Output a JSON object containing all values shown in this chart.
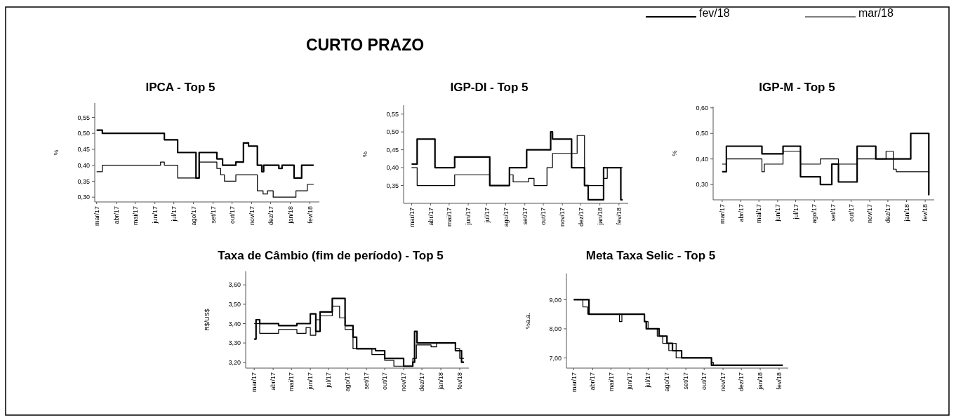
{
  "chart_data": [
    {
      "type": "other",
      "title": "CURTO PRAZO"
    },
    {
      "type": "step",
      "title": "IPCA - Top 5",
      "ylabel": "%",
      "xlim": [
        "2017-02-26",
        "2018-02-16"
      ],
      "ylim": [
        0.285,
        0.595
      ],
      "xticks": [
        {
          "value": "2017-03-01",
          "label": "mar/17"
        },
        {
          "value": "2017-04-01",
          "label": "abr/17"
        },
        {
          "value": "2017-05-01",
          "label": "mai/17"
        },
        {
          "value": "2017-06-01",
          "label": "jun/17"
        },
        {
          "value": "2017-07-01",
          "label": "jul/17"
        },
        {
          "value": "2017-08-01",
          "label": "ago/17"
        },
        {
          "value": "2017-09-01",
          "label": "set/17"
        },
        {
          "value": "2017-10-01",
          "label": "out/17"
        },
        {
          "value": "2017-11-01",
          "label": "nov/17"
        },
        {
          "value": "2017-12-01",
          "label": "dez/17"
        },
        {
          "value": "2018-01-01",
          "label": "jan/18"
        },
        {
          "value": "2018-02-01",
          "label": "fev/18"
        }
      ],
      "yticks": [
        {
          "value": 0.3,
          "label": "0,30"
        },
        {
          "value": 0.35,
          "label": "0,35"
        },
        {
          "value": 0.4,
          "label": "0,40"
        },
        {
          "value": 0.45,
          "label": "0,45"
        },
        {
          "value": 0.5,
          "label": "0,50"
        },
        {
          "value": 0.55,
          "label": "0,55"
        }
      ],
      "series": [
        {
          "color": "#000000",
          "x": [
            "2017-03-01",
            "2017-03-10",
            "2017-06-16",
            "2017-07-07",
            "2017-08-05",
            "2017-08-10",
            "2017-09-07",
            "2017-09-16",
            "2017-10-07",
            "2017-10-19",
            "2017-10-27",
            "2017-11-10",
            "2017-11-17",
            "2017-11-20",
            "2017-12-14",
            "2017-12-19",
            "2018-01-07",
            "2018-01-19",
            "2018-02-07"
          ],
          "values": [
            0.51,
            0.5,
            0.48,
            0.44,
            0.36,
            0.44,
            0.42,
            0.4,
            0.41,
            0.47,
            0.46,
            0.4,
            0.38,
            0.4,
            0.39,
            0.4,
            0.36,
            0.4,
            0.4
          ]
        },
        {
          "color": "#000000",
          "x": [
            "2017-03-01",
            "2017-03-10",
            "2017-06-10",
            "2017-06-16",
            "2017-07-07",
            "2017-08-10",
            "2017-09-07",
            "2017-09-13",
            "2017-09-19",
            "2017-10-07",
            "2017-11-10",
            "2017-11-19",
            "2017-11-26",
            "2017-12-05",
            "2018-01-10",
            "2018-01-28",
            "2018-02-07"
          ],
          "values": [
            0.38,
            0.4,
            0.41,
            0.4,
            0.36,
            0.41,
            0.39,
            0.37,
            0.35,
            0.37,
            0.32,
            0.31,
            0.32,
            0.3,
            0.32,
            0.34,
            0.34
          ]
        }
      ]
    },
    {
      "type": "step",
      "title": "IGP-DI - Top 5",
      "ylabel": "%",
      "xlim": [
        "2017-02-16",
        "2018-02-16"
      ],
      "ylim": [
        0.3,
        0.575
      ],
      "xticks": [
        {
          "value": "2017-03-01",
          "label": "mar/17"
        },
        {
          "value": "2017-04-01",
          "label": "abr/17"
        },
        {
          "value": "2017-05-01",
          "label": "mai/17"
        },
        {
          "value": "2017-06-01",
          "label": "jun/17"
        },
        {
          "value": "2017-07-01",
          "label": "jul/17"
        },
        {
          "value": "2017-08-01",
          "label": "ago/17"
        },
        {
          "value": "2017-09-01",
          "label": "set/17"
        },
        {
          "value": "2017-10-01",
          "label": "out/17"
        },
        {
          "value": "2017-11-01",
          "label": "nov/17"
        },
        {
          "value": "2017-12-01",
          "label": "dez/17"
        },
        {
          "value": "2018-01-01",
          "label": "jan/18"
        },
        {
          "value": "2018-02-01",
          "label": "fev/18"
        }
      ],
      "yticks": [
        {
          "value": 0.35,
          "label": "0,35"
        },
        {
          "value": 0.4,
          "label": "0,40"
        },
        {
          "value": 0.45,
          "label": "0,45"
        },
        {
          "value": 0.5,
          "label": "0,50"
        },
        {
          "value": 0.55,
          "label": "0,55"
        }
      ],
      "series": [
        {
          "color": "#000000",
          "x": [
            "2017-03-01",
            "2017-03-10",
            "2017-04-08",
            "2017-05-10",
            "2017-07-06",
            "2017-08-07",
            "2017-09-04",
            "2017-10-13",
            "2017-10-16",
            "2017-11-16",
            "2017-12-07",
            "2017-12-13",
            "2018-01-07",
            "2018-02-04",
            "2018-02-07"
          ],
          "values": [
            0.41,
            0.48,
            0.4,
            0.43,
            0.35,
            0.4,
            0.45,
            0.5,
            0.48,
            0.4,
            0.35,
            0.31,
            0.4,
            0.31,
            0.31
          ]
        },
        {
          "color": "#000000",
          "x": [
            "2017-03-01",
            "2017-03-10",
            "2017-05-10",
            "2017-07-06",
            "2017-08-07",
            "2017-08-13",
            "2017-09-07",
            "2017-09-16",
            "2017-10-07",
            "2017-10-16",
            "2017-11-25",
            "2017-12-07",
            "2018-01-07",
            "2018-01-13",
            "2018-02-07"
          ],
          "values": [
            0.4,
            0.35,
            0.38,
            0.35,
            0.38,
            0.36,
            0.37,
            0.35,
            0.4,
            0.44,
            0.49,
            0.35,
            0.37,
            0.4,
            0.4
          ]
        }
      ]
    },
    {
      "type": "step",
      "title": "IGP-M - Top 5",
      "ylabel": "%",
      "legend": "top left",
      "xlim": [
        "2017-02-14",
        "2018-02-16"
      ],
      "ylim": [
        0.24,
        0.605
      ],
      "xticks": [
        {
          "value": "2017-03-01",
          "label": "mar/17"
        },
        {
          "value": "2017-04-01",
          "label": "abr/17"
        },
        {
          "value": "2017-05-01",
          "label": "mai/17"
        },
        {
          "value": "2017-06-01",
          "label": "jun/17"
        },
        {
          "value": "2017-07-01",
          "label": "jul/17"
        },
        {
          "value": "2017-08-01",
          "label": "ago/17"
        },
        {
          "value": "2017-09-01",
          "label": "set/17"
        },
        {
          "value": "2017-10-01",
          "label": "out/17"
        },
        {
          "value": "2017-11-01",
          "label": "nov/17"
        },
        {
          "value": "2017-12-01",
          "label": "dez/17"
        },
        {
          "value": "2018-01-01",
          "label": "jan/18"
        },
        {
          "value": "2018-02-01",
          "label": "fev/18"
        }
      ],
      "yticks": [
        {
          "value": 0.3,
          "label": "0,30"
        },
        {
          "value": 0.4,
          "label": "0,40"
        },
        {
          "value": 0.5,
          "label": "0,50"
        },
        {
          "value": 0.6,
          "label": "0,60"
        }
      ],
      "series": [
        {
          "name": "fev/18",
          "color": "#000000",
          "x": [
            "2017-03-01",
            "2017-03-08",
            "2017-05-06",
            "2017-06-10",
            "2017-07-09",
            "2017-08-11",
            "2017-08-30",
            "2017-09-10",
            "2017-10-11",
            "2017-11-11",
            "2018-01-08",
            "2018-02-07",
            "2018-02-08"
          ],
          "values": [
            0.35,
            0.45,
            0.42,
            0.45,
            0.33,
            0.3,
            0.38,
            0.31,
            0.45,
            0.4,
            0.5,
            0.26,
            0.26
          ]
        },
        {
          "name": "mar/18",
          "color": "#000000",
          "x": [
            "2017-03-01",
            "2017-03-08",
            "2017-05-06",
            "2017-05-10",
            "2017-06-10",
            "2017-07-09",
            "2017-08-11",
            "2017-09-10",
            "2017-10-11",
            "2017-11-28",
            "2017-12-10",
            "2017-12-15",
            "2018-02-08"
          ],
          "values": [
            0.38,
            0.4,
            0.35,
            0.38,
            0.43,
            0.38,
            0.4,
            0.38,
            0.4,
            0.43,
            0.36,
            0.35,
            0.35
          ]
        }
      ]
    },
    {
      "type": "step",
      "title": "Taxa de Câmbio (fim de período) - Top 5",
      "ylabel": "R$/US$",
      "xlim": [
        "2017-02-15",
        "2018-02-16"
      ],
      "ylim": [
        3.17,
        3.67
      ],
      "xticks": [
        {
          "value": "2017-03-01",
          "label": "mar/17"
        },
        {
          "value": "2017-04-01",
          "label": "abr/17"
        },
        {
          "value": "2017-05-01",
          "label": "mai/17"
        },
        {
          "value": "2017-06-01",
          "label": "jun/17"
        },
        {
          "value": "2017-07-01",
          "label": "jul/17"
        },
        {
          "value": "2017-08-01",
          "label": "ago/17"
        },
        {
          "value": "2017-09-01",
          "label": "set/17"
        },
        {
          "value": "2017-10-01",
          "label": "out/17"
        },
        {
          "value": "2017-11-01",
          "label": "nov/17"
        },
        {
          "value": "2017-12-01",
          "label": "dez/17"
        },
        {
          "value": "2018-01-01",
          "label": "jan/18"
        },
        {
          "value": "2018-02-01",
          "label": "fev/18"
        }
      ],
      "yticks": [
        {
          "value": 3.2,
          "label": "3,20"
        },
        {
          "value": 3.3,
          "label": "3,30"
        },
        {
          "value": 3.4,
          "label": "3,40"
        },
        {
          "value": 3.5,
          "label": "3,50"
        },
        {
          "value": 3.6,
          "label": "3,60"
        }
      ],
      "series": [
        {
          "color": "#000000",
          "x": [
            "2017-03-01",
            "2017-03-04",
            "2017-03-10",
            "2017-04-10",
            "2017-05-10",
            "2017-06-01",
            "2017-06-10",
            "2017-06-17",
            "2017-07-07",
            "2017-07-28",
            "2017-08-10",
            "2017-08-16",
            "2017-09-16",
            "2017-10-01",
            "2017-11-01",
            "2017-11-16",
            "2017-11-19",
            "2017-11-23",
            "2018-01-25",
            "2018-02-04",
            "2018-02-08"
          ],
          "values": [
            3.32,
            3.42,
            3.4,
            3.39,
            3.4,
            3.45,
            3.36,
            3.46,
            3.53,
            3.39,
            3.33,
            3.27,
            3.26,
            3.22,
            3.18,
            3.2,
            3.36,
            3.3,
            3.26,
            3.2,
            3.2
          ]
        },
        {
          "color": "#000000",
          "x": [
            "2017-03-01",
            "2017-03-10",
            "2017-04-10",
            "2017-05-10",
            "2017-05-25",
            "2017-06-01",
            "2017-06-10",
            "2017-06-17",
            "2017-07-07",
            "2017-07-19",
            "2017-07-28",
            "2017-08-10",
            "2017-09-10",
            "2017-10-01",
            "2017-10-16",
            "2017-11-16",
            "2017-11-22",
            "2017-12-16",
            "2017-12-25",
            "2018-01-25",
            "2018-02-01",
            "2018-02-08"
          ],
          "values": [
            3.4,
            3.35,
            3.37,
            3.35,
            3.38,
            3.34,
            3.42,
            3.44,
            3.49,
            3.43,
            3.37,
            3.27,
            3.24,
            3.21,
            3.18,
            3.22,
            3.29,
            3.28,
            3.3,
            3.27,
            3.22,
            3.22
          ]
        }
      ]
    },
    {
      "type": "step",
      "title": "Meta Taxa Selic - Top 5",
      "ylabel": "%a.a.",
      "xlim": [
        "2017-02-17",
        "2018-02-16"
      ],
      "ylim": [
        6.65,
        9.9
      ],
      "xticks": [
        {
          "value": "2017-03-01",
          "label": "mar/17"
        },
        {
          "value": "2017-04-01",
          "label": "abr/17"
        },
        {
          "value": "2017-05-01",
          "label": "mai/17"
        },
        {
          "value": "2017-06-01",
          "label": "jun/17"
        },
        {
          "value": "2017-07-01",
          "label": "jul/17"
        },
        {
          "value": "2017-08-01",
          "label": "ago/17"
        },
        {
          "value": "2017-09-01",
          "label": "set/17"
        },
        {
          "value": "2017-10-01",
          "label": "out/17"
        },
        {
          "value": "2017-11-01",
          "label": "nov/17"
        },
        {
          "value": "2017-12-01",
          "label": "dez/17"
        },
        {
          "value": "2018-01-01",
          "label": "jan/18"
        },
        {
          "value": "2018-02-01",
          "label": "fev/18"
        }
      ],
      "yticks": [
        {
          "value": 7,
          "label": "7,00"
        },
        {
          "value": 8,
          "label": "8,00"
        },
        {
          "value": 9,
          "label": "9,00"
        }
      ],
      "series": [
        {
          "color": "#000000",
          "x": [
            "2017-03-01",
            "2017-03-26",
            "2017-06-25",
            "2017-06-28",
            "2017-07-19",
            "2017-08-01",
            "2017-08-10",
            "2017-08-25",
            "2017-10-13",
            "2018-02-07"
          ],
          "values": [
            9.0,
            8.5,
            8.25,
            8.0,
            7.75,
            7.5,
            7.25,
            7.0,
            6.75,
            6.75
          ]
        },
        {
          "color": "#000000",
          "x": [
            "2017-03-01",
            "2017-03-16",
            "2017-03-24",
            "2017-05-15",
            "2017-05-19",
            "2017-06-25",
            "2017-07-01",
            "2017-07-16",
            "2017-07-25",
            "2017-08-04",
            "2017-08-10",
            "2017-08-16",
            "2017-10-13",
            "2017-10-16",
            "2018-02-07"
          ],
          "values": [
            9.0,
            8.75,
            8.5,
            8.25,
            8.5,
            8.25,
            8.0,
            7.75,
            7.5,
            7.25,
            7.5,
            7.0,
            6.85,
            6.75,
            6.75
          ]
        }
      ]
    }
  ]
}
